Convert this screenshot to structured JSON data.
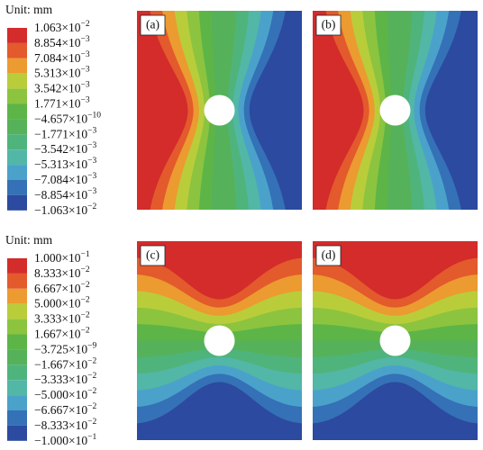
{
  "panels": [
    {
      "label": "(a)",
      "field": "vertical"
    },
    {
      "label": "(b)",
      "field": "vertical"
    },
    {
      "label": "(c)",
      "field": "horizontal"
    },
    {
      "label": "(d)",
      "field": "horizontal"
    }
  ],
  "legends": [
    {
      "unit": "Unit: mm",
      "colors": [
        "#d42b2b",
        "#e35a2c",
        "#eb9b30",
        "#b9cd3b",
        "#8cc43f",
        "#5db547",
        "#55b25a",
        "#4fb47c",
        "#52b7a6",
        "#4aa2cb",
        "#3571b6",
        "#2b4aa0"
      ],
      "labels": [
        {
          "base": "1.063×10",
          "exp": "−2"
        },
        {
          "base": "8.854×10",
          "exp": "−3"
        },
        {
          "base": "7.084×10",
          "exp": "−3"
        },
        {
          "base": "5.313×10",
          "exp": "−3"
        },
        {
          "base": "3.542×10",
          "exp": "−3"
        },
        {
          "base": "1.771×10",
          "exp": "−3"
        },
        {
          "base": "−4.657×10",
          "exp": "−10"
        },
        {
          "base": "−1.771×10",
          "exp": "−3"
        },
        {
          "base": "−3.542×10",
          "exp": "−3"
        },
        {
          "base": "−5.313×10",
          "exp": "−3"
        },
        {
          "base": "−7.084×10",
          "exp": "−3"
        },
        {
          "base": "−8.854×10",
          "exp": "−3"
        },
        {
          "base": "−1.063×10",
          "exp": "−2"
        }
      ]
    },
    {
      "unit": "Unit: mm",
      "colors": [
        "#d42b2b",
        "#e35a2c",
        "#eb9b30",
        "#b9cd3b",
        "#8cc43f",
        "#5db547",
        "#55b25a",
        "#4fb47c",
        "#52b7a6",
        "#4aa2cb",
        "#3571b6",
        "#2b4aa0"
      ],
      "labels": [
        {
          "base": "1.000×10",
          "exp": "−1"
        },
        {
          "base": "8.333×10",
          "exp": "−2"
        },
        {
          "base": "6.667×10",
          "exp": "−2"
        },
        {
          "base": "5.000×10",
          "exp": "−2"
        },
        {
          "base": "3.333×10",
          "exp": "−2"
        },
        {
          "base": "1.667×10",
          "exp": "−2"
        },
        {
          "base": "−3.725×10",
          "exp": "−9"
        },
        {
          "base": "−1.667×10",
          "exp": "−2"
        },
        {
          "base": "−3.333×10",
          "exp": "−2"
        },
        {
          "base": "−5.000×10",
          "exp": "−2"
        },
        {
          "base": "−6.667×10",
          "exp": "−2"
        },
        {
          "base": "−8.333×10",
          "exp": "−2"
        },
        {
          "base": "−1.000×10",
          "exp": "−1"
        }
      ]
    }
  ]
}
